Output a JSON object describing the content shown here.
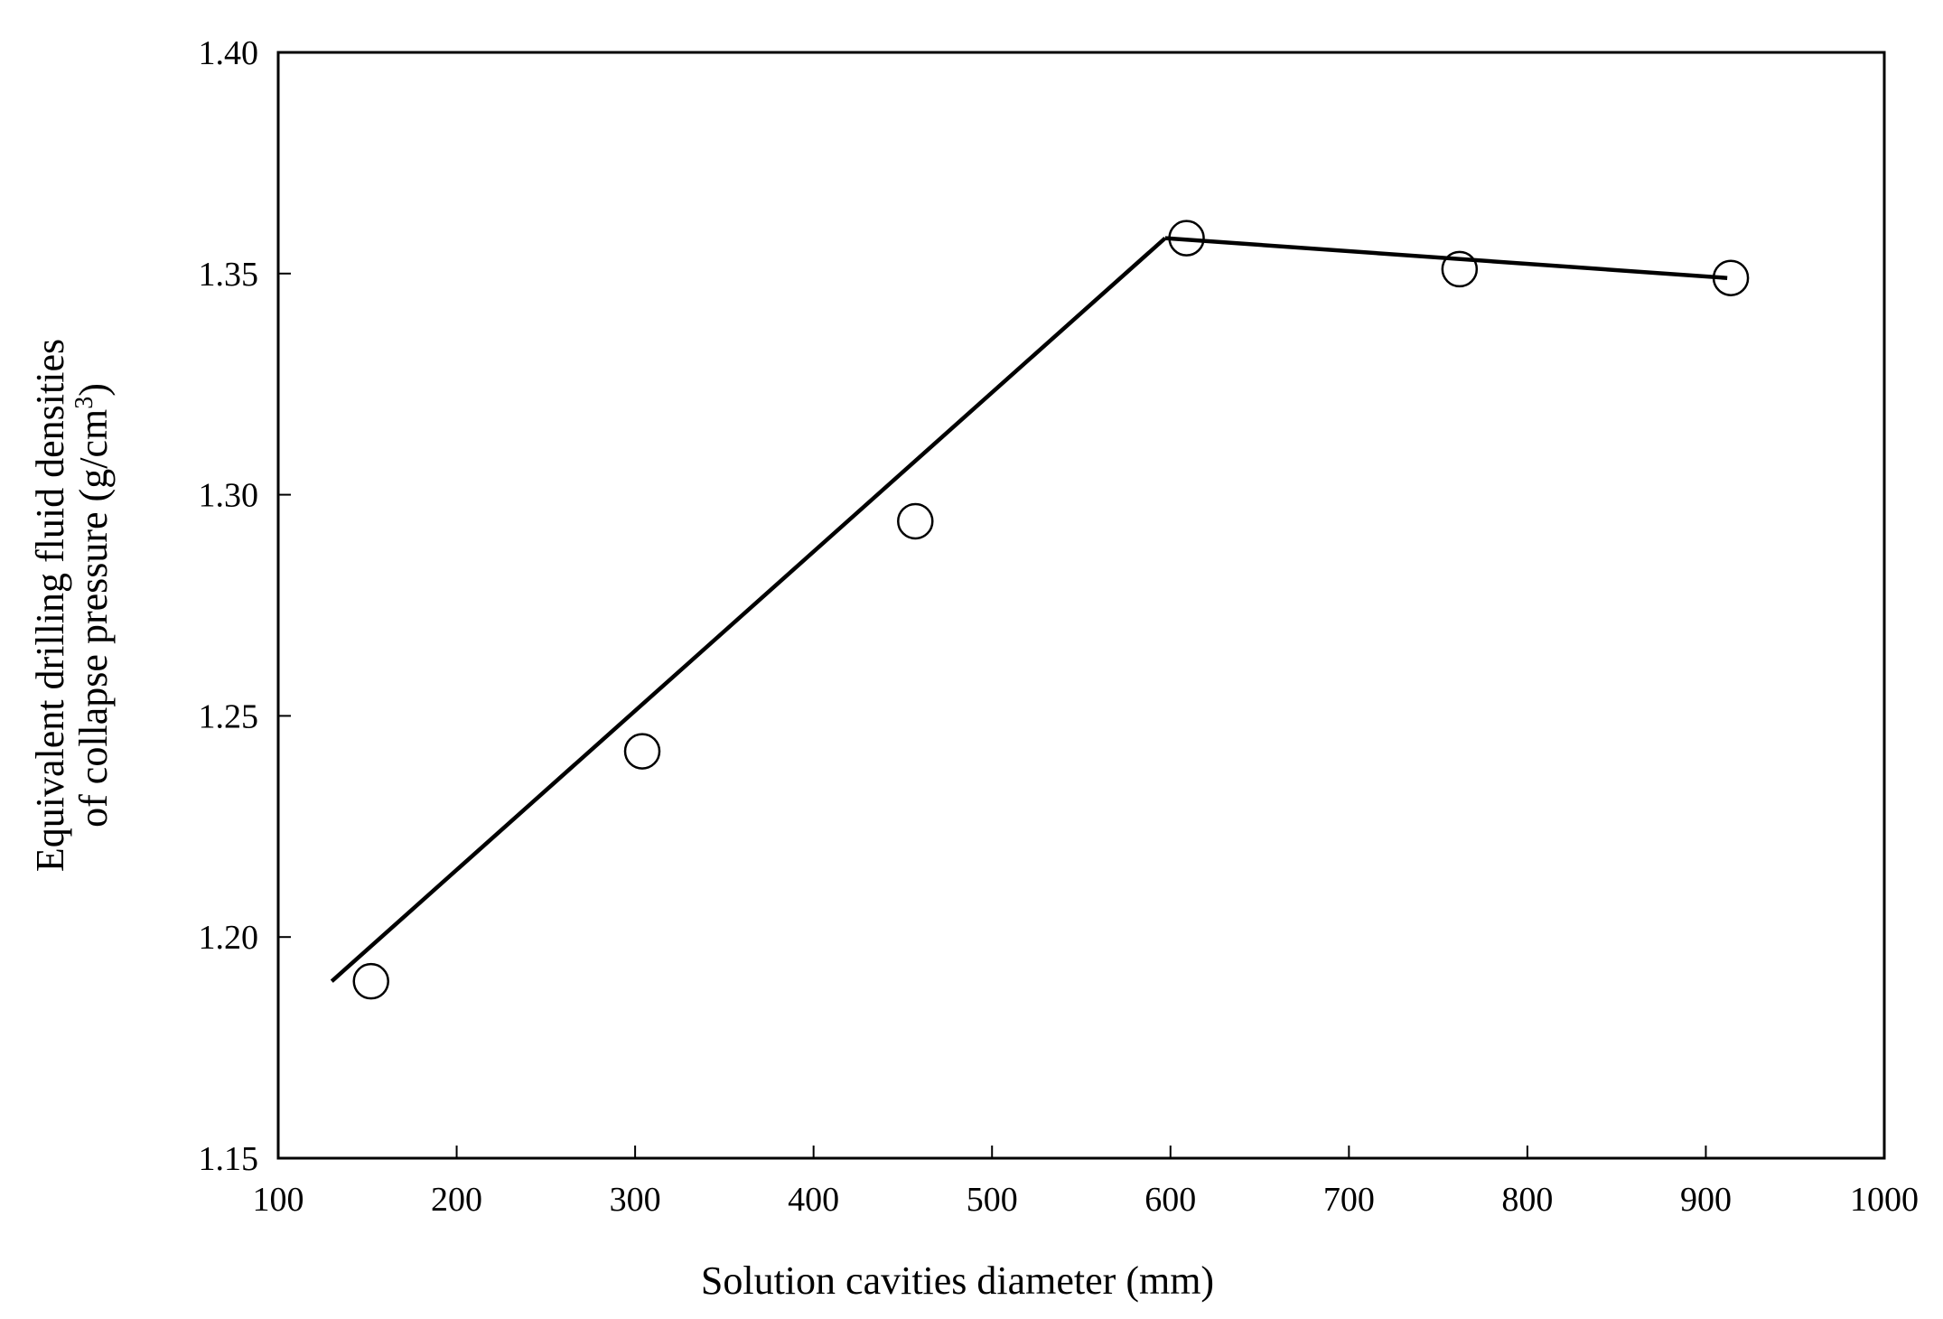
{
  "chart_data": {
    "type": "scatter",
    "title": "",
    "xlabel": "Solution cavities diameter (mm)",
    "ylabel_line1": "Equivalent drilling fluid densities",
    "ylabel_line2_prefix": "of collapse pressure (g/cm",
    "ylabel_line2_sup": "3",
    "ylabel_line2_suffix": ")",
    "xlim": [
      100,
      1000
    ],
    "ylim": [
      1.15,
      1.4
    ],
    "xticks": [
      "100",
      "200",
      "300",
      "400",
      "500",
      "600",
      "700",
      "800",
      "900",
      "1000"
    ],
    "yticks": [
      "1.15",
      "1.20",
      "1.25",
      "1.30",
      "1.35",
      "1.40"
    ],
    "grid": false,
    "legend": "none",
    "series": [
      {
        "kind": "markers",
        "marker": "open-circle",
        "x": [
          152,
          304,
          457,
          609,
          762,
          914
        ],
        "y": [
          1.19,
          1.242,
          1.294,
          1.358,
          1.351,
          1.349
        ]
      },
      {
        "kind": "line",
        "x": [
          130,
          597,
          912
        ],
        "y": [
          1.19,
          1.358,
          1.349
        ]
      }
    ]
  }
}
